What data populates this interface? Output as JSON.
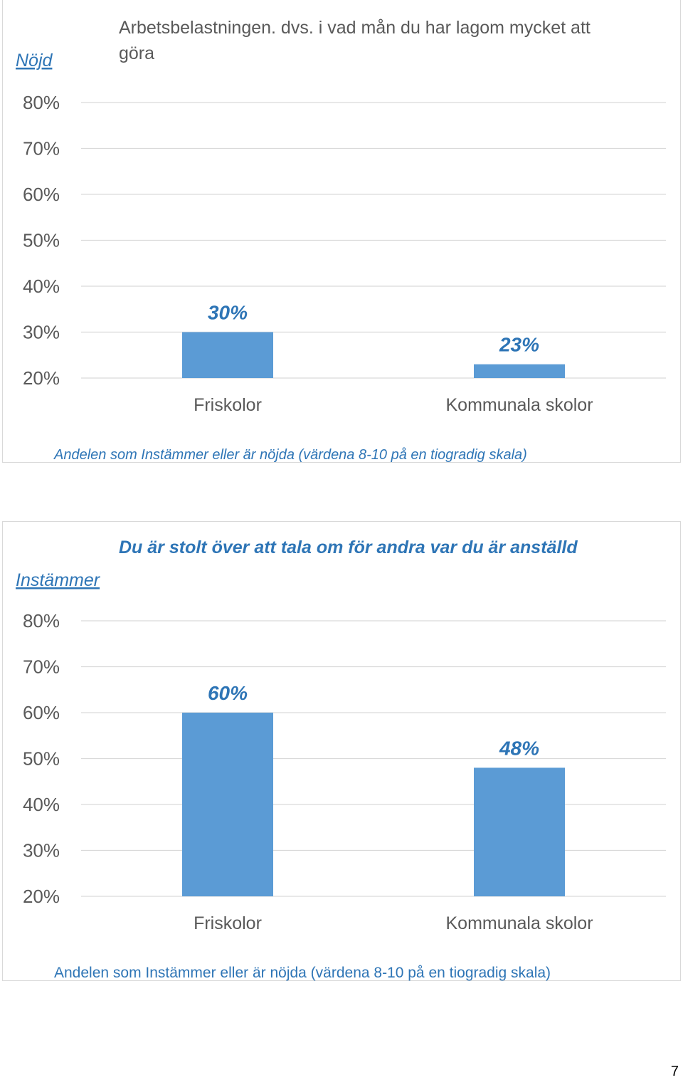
{
  "page_number": "7",
  "chart_data": [
    {
      "type": "bar",
      "title_lines": [
        "Arbetsbelastningen. dvs. i vad mån du har lagom mycket att",
        "göra"
      ],
      "ylabel": "Nöjd",
      "xlabel": "Andelen som Instämmer eller är nöjda (värdena 8-10 på en tiogradig skala)",
      "ylim": [
        0.2,
        0.8
      ],
      "yticks": [
        "80%",
        "70%",
        "60%",
        "50%",
        "40%",
        "30%",
        "20%"
      ],
      "categories": [
        "Friskolor",
        "Kommunala skolor"
      ],
      "values": [
        0.3,
        0.23
      ],
      "data_labels": [
        "30%",
        "23%"
      ],
      "bar_color": "#5b9bd5",
      "grid": true
    },
    {
      "type": "bar",
      "title_lines": [
        "Du är stolt över att tala om för andra var du är anställd"
      ],
      "ylabel": "Instämmer",
      "xlabel": "Andelen som Instämmer eller är nöjda (värdena 8-10 på en tiogradig skala)",
      "ylim": [
        0.2,
        0.8
      ],
      "yticks": [
        "80%",
        "70%",
        "60%",
        "50%",
        "40%",
        "30%",
        "20%"
      ],
      "categories": [
        "Friskolor",
        "Kommunala skolor"
      ],
      "values": [
        0.6,
        0.48
      ],
      "data_labels": [
        "60%",
        "48%"
      ],
      "bar_color": "#5b9bd5",
      "grid": true
    }
  ]
}
